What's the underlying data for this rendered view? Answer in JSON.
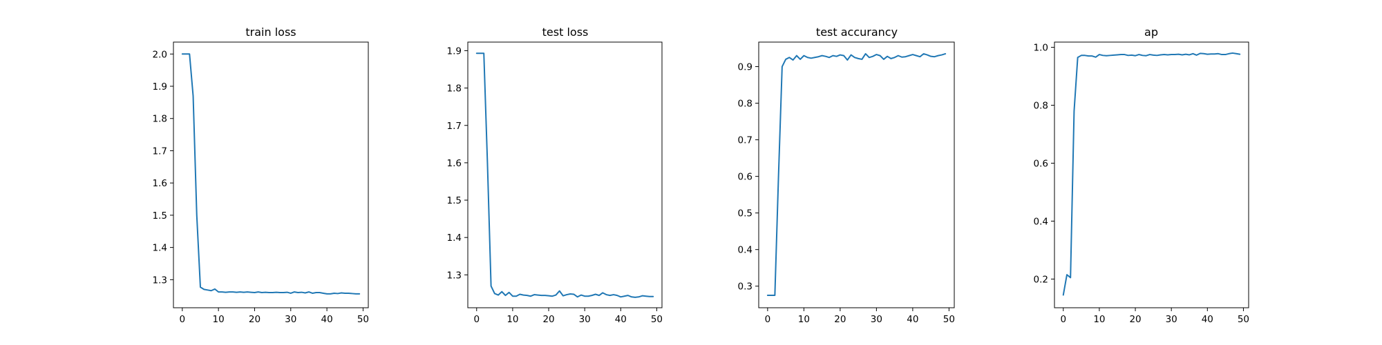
{
  "chart_data": [
    {
      "type": "line",
      "title": "train loss",
      "xlabel": "",
      "ylabel": "",
      "xlim": [
        -2.45,
        51.45
      ],
      "ylim": [
        1.213,
        2.037
      ],
      "xticks": [
        0,
        10,
        20,
        30,
        40,
        50
      ],
      "yticks": [
        1.3,
        1.4,
        1.5,
        1.6,
        1.7,
        1.8,
        1.9,
        2.0
      ],
      "ytick_labels": [
        "1.3",
        "1.4",
        "1.5",
        "1.6",
        "1.7",
        "1.8",
        "1.9",
        "2.0"
      ],
      "grid": false,
      "color": "#1f77b4",
      "series": [
        {
          "x": [
            0,
            1,
            2,
            3,
            4,
            5,
            6,
            7,
            8,
            9,
            10,
            11,
            12,
            13,
            14,
            15,
            16,
            17,
            18,
            19,
            20,
            21,
            22,
            23,
            24,
            25,
            26,
            27,
            28,
            29,
            30,
            31,
            32,
            33,
            34,
            35,
            36,
            37,
            38,
            39,
            40,
            41,
            42,
            43,
            44,
            45,
            46,
            47,
            48,
            49
          ],
          "values": [
            2.0,
            2.0,
            2.0,
            1.87,
            1.5,
            1.277,
            1.27,
            1.268,
            1.266,
            1.271,
            1.262,
            1.262,
            1.261,
            1.262,
            1.262,
            1.261,
            1.262,
            1.261,
            1.262,
            1.261,
            1.26,
            1.262,
            1.26,
            1.261,
            1.26,
            1.26,
            1.261,
            1.26,
            1.26,
            1.261,
            1.258,
            1.262,
            1.26,
            1.261,
            1.259,
            1.262,
            1.258,
            1.26,
            1.26,
            1.258,
            1.256,
            1.256,
            1.258,
            1.257,
            1.259,
            1.258,
            1.258,
            1.257,
            1.256,
            1.256
          ]
        }
      ]
    },
    {
      "type": "line",
      "title": "test loss",
      "xlabel": "",
      "ylabel": "",
      "xlim": [
        -2.45,
        51.45
      ],
      "ylim": [
        1.212,
        1.923
      ],
      "xticks": [
        0,
        10,
        20,
        30,
        40,
        50
      ],
      "yticks": [
        1.3,
        1.4,
        1.5,
        1.6,
        1.7,
        1.8,
        1.9
      ],
      "ytick_labels": [
        "1.3",
        "1.4",
        "1.5",
        "1.6",
        "1.7",
        "1.8",
        "1.9"
      ],
      "grid": false,
      "color": "#1f77b4",
      "series": [
        {
          "x": [
            0,
            1,
            2,
            3,
            4,
            5,
            6,
            7,
            8,
            9,
            10,
            11,
            12,
            13,
            14,
            15,
            16,
            17,
            18,
            19,
            20,
            21,
            22,
            23,
            24,
            25,
            26,
            27,
            28,
            29,
            30,
            31,
            32,
            33,
            34,
            35,
            36,
            37,
            38,
            39,
            40,
            41,
            42,
            43,
            44,
            45,
            46,
            47,
            48,
            49
          ],
          "values": [
            1.893,
            1.893,
            1.893,
            1.6,
            1.27,
            1.25,
            1.246,
            1.255,
            1.245,
            1.253,
            1.243,
            1.243,
            1.248,
            1.246,
            1.245,
            1.243,
            1.247,
            1.246,
            1.245,
            1.245,
            1.244,
            1.243,
            1.246,
            1.257,
            1.244,
            1.247,
            1.249,
            1.248,
            1.241,
            1.246,
            1.243,
            1.243,
            1.245,
            1.248,
            1.245,
            1.252,
            1.247,
            1.245,
            1.247,
            1.245,
            1.241,
            1.243,
            1.245,
            1.241,
            1.24,
            1.241,
            1.244,
            1.243,
            1.242,
            1.242
          ]
        }
      ]
    },
    {
      "type": "line",
      "title": "test accurancy",
      "xlabel": "",
      "ylabel": "",
      "xlim": [
        -2.45,
        51.45
      ],
      "ylim": [
        0.241,
        0.967
      ],
      "xticks": [
        0,
        10,
        20,
        30,
        40,
        50
      ],
      "yticks": [
        0.3,
        0.4,
        0.5,
        0.6,
        0.7,
        0.8,
        0.9
      ],
      "ytick_labels": [
        "0.3",
        "0.4",
        "0.5",
        "0.6",
        "0.7",
        "0.8",
        "0.9"
      ],
      "grid": false,
      "color": "#1f77b4",
      "series": [
        {
          "x": [
            0,
            1,
            2,
            3,
            4,
            5,
            6,
            7,
            8,
            9,
            10,
            11,
            12,
            13,
            14,
            15,
            16,
            17,
            18,
            19,
            20,
            21,
            22,
            23,
            24,
            25,
            26,
            27,
            28,
            29,
            30,
            31,
            32,
            33,
            34,
            35,
            36,
            37,
            38,
            39,
            40,
            41,
            42,
            43,
            44,
            45,
            46,
            47,
            48,
            49
          ],
          "values": [
            0.275,
            0.275,
            0.275,
            0.6,
            0.9,
            0.92,
            0.925,
            0.918,
            0.93,
            0.92,
            0.93,
            0.925,
            0.923,
            0.925,
            0.927,
            0.93,
            0.928,
            0.925,
            0.93,
            0.928,
            0.932,
            0.93,
            0.918,
            0.932,
            0.925,
            0.922,
            0.92,
            0.935,
            0.925,
            0.928,
            0.933,
            0.93,
            0.92,
            0.928,
            0.922,
            0.925,
            0.93,
            0.926,
            0.927,
            0.93,
            0.933,
            0.93,
            0.927,
            0.935,
            0.932,
            0.928,
            0.927,
            0.93,
            0.932,
            0.935
          ]
        }
      ]
    },
    {
      "type": "line",
      "title": "ap",
      "xlabel": "",
      "ylabel": "",
      "xlim": [
        -2.45,
        51.45
      ],
      "ylim": [
        0.101,
        1.018
      ],
      "xticks": [
        0,
        10,
        20,
        30,
        40,
        50
      ],
      "yticks": [
        0.2,
        0.4,
        0.6,
        0.8,
        1.0
      ],
      "ytick_labels": [
        "0.2",
        "0.4",
        "0.6",
        "0.8",
        "1.0"
      ],
      "grid": false,
      "color": "#1f77b4",
      "series": [
        {
          "x": [
            0,
            1,
            2,
            3,
            4,
            5,
            6,
            7,
            8,
            9,
            10,
            11,
            12,
            13,
            14,
            15,
            16,
            17,
            18,
            19,
            20,
            21,
            22,
            23,
            24,
            25,
            26,
            27,
            28,
            29,
            30,
            31,
            32,
            33,
            34,
            35,
            36,
            37,
            38,
            39,
            40,
            41,
            42,
            43,
            44,
            45,
            46,
            47,
            48,
            49
          ],
          "values": [
            0.145,
            0.215,
            0.205,
            0.78,
            0.965,
            0.972,
            0.972,
            0.97,
            0.97,
            0.966,
            0.975,
            0.972,
            0.971,
            0.972,
            0.973,
            0.974,
            0.975,
            0.975,
            0.972,
            0.973,
            0.971,
            0.975,
            0.972,
            0.971,
            0.975,
            0.973,
            0.972,
            0.974,
            0.975,
            0.974,
            0.975,
            0.975,
            0.976,
            0.974,
            0.976,
            0.974,
            0.978,
            0.973,
            0.979,
            0.978,
            0.976,
            0.977,
            0.977,
            0.978,
            0.975,
            0.975,
            0.978,
            0.98,
            0.978,
            0.976
          ]
        }
      ]
    }
  ]
}
